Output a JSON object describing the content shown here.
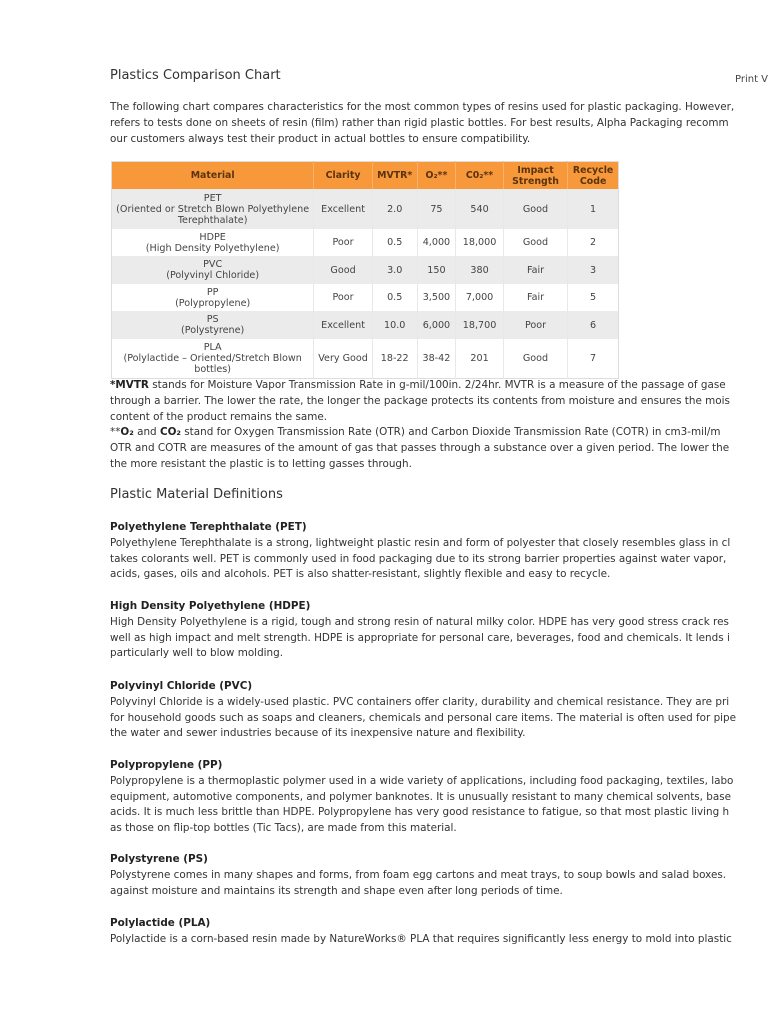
{
  "title": "Plastics Comparison Chart",
  "print_link": "Print V",
  "intro": [
    "The following chart compares characteristics for the most common types of resins used for plastic packaging. However,",
    "refers to tests done on sheets of resin (film) rather than rigid plastic bottles. For best results, Alpha Packaging recomm",
    "our customers always test their product in actual bottles to ensure compatibility."
  ],
  "table": {
    "header_color": "#f7983a",
    "headers": [
      "Material",
      "Clarity",
      "MVTR*",
      "O₂**",
      "C0₂**",
      "Impact Strength",
      "Recycle Code"
    ],
    "rows": [
      {
        "abbr": "PET",
        "name": "(Oriented or Stretch Blown Polyethylene Terephthalate)",
        "clarity": "Excellent",
        "mvtr": "2.0",
        "o2": "75",
        "co2": "540",
        "impact": "Good",
        "code": "1"
      },
      {
        "abbr": "HDPE",
        "name": "(High Density Polyethylene)",
        "clarity": "Poor",
        "mvtr": "0.5",
        "o2": "4,000",
        "co2": "18,000",
        "impact": "Good",
        "code": "2"
      },
      {
        "abbr": "PVC",
        "name": "(Polyvinyl Chloride)",
        "clarity": "Good",
        "mvtr": "3.0",
        "o2": "150",
        "co2": "380",
        "impact": "Fair",
        "code": "3"
      },
      {
        "abbr": "PP",
        "name": "(Polypropylene)",
        "clarity": "Poor",
        "mvtr": "0.5",
        "o2": "3,500",
        "co2": "7,000",
        "impact": "Fair",
        "code": "5"
      },
      {
        "abbr": "PS",
        "name": "(Polystyrene)",
        "clarity": "Excellent",
        "mvtr": "10.0",
        "o2": "6,000",
        "co2": "18,700",
        "impact": "Poor",
        "code": "6"
      },
      {
        "abbr": "PLA",
        "name": "(Polylactide – Oriented/Stretch Blown bottles)",
        "clarity": "Very Good",
        "mvtr": "18-22",
        "o2": "38-42",
        "co2": "201",
        "impact": "Good",
        "code": "7"
      }
    ]
  },
  "footnotes": {
    "mvtr_bold": "*MVTR",
    "mvtr_lines": [
      " stands for Moisture Vapor Transmission Rate in g-mil/100in. 2/24hr. MVTR is a measure of the passage of gase",
      "through a barrier. The lower the rate, the longer the package protects its contents from moisture and ensures the mois",
      "content of the product remains the same."
    ],
    "gas_prefix": "**",
    "o2_bold": "O₂",
    "and": " and ",
    "co2_bold": "CO₂",
    "gas_lines": [
      " stand for Oxygen Transmission Rate (OTR) and Carbon Dioxide Transmission Rate (COTR) in cm3-mil/m",
      "OTR and COTR are measures of the amount of gas that passes through a substance over a given period. The lower the",
      "the more resistant the plastic is to letting gasses through."
    ]
  },
  "definitions_title": "Plastic Material Definitions",
  "definitions": [
    {
      "heading": "Polyethylene Terephthalate (PET)",
      "lines": [
        "Polyethylene Terephthalate is a strong, lightweight plastic resin and form of polyester that closely resembles glass in cl",
        "takes colorants well. PET is commonly used in food packaging due to its strong barrier properties against water vapor,",
        "acids, gases, oils and alcohols. PET is also shatter-resistant, slightly flexible and easy to recycle."
      ]
    },
    {
      "heading": "High Density Polyethylene (HDPE)",
      "lines": [
        "High Density Polyethylene is a rigid, tough and strong resin of natural milky color. HDPE has very good stress crack res",
        "well as high impact and melt strength. HDPE is appropriate for personal care, beverages, food and chemicals. It lends i",
        "particularly well to blow molding."
      ]
    },
    {
      "heading": "Polyvinyl Chloride (PVC)",
      "lines": [
        "Polyvinyl Chloride is a widely-used plastic. PVC containers offer clarity, durability and chemical resistance. They are pri",
        "for household goods such as soaps and cleaners, chemicals and personal care items. The material is often used for pipe",
        "the water and sewer industries because of its inexpensive nature and flexibility."
      ]
    },
    {
      "heading": "Polypropylene (PP)",
      "lines": [
        "Polypropylene is a thermoplastic polymer used in a wide variety of applications, including food packaging, textiles, labo",
        "equipment, automotive components, and polymer banknotes. It is unusually resistant to many chemical solvents, base",
        "acids. It is much less brittle than HDPE. Polypropylene has very good resistance to fatigue, so that most plastic living h",
        "as those on flip-top bottles (Tic Tacs), are made from this material."
      ]
    },
    {
      "heading": "Polystyrene (PS)",
      "lines": [
        "Polystyrene comes in many shapes and forms, from foam egg cartons and meat trays, to soup bowls and salad boxes.",
        "against moisture and maintains its strength and shape even after long periods of time."
      ]
    },
    {
      "heading": "Polylactide (PLA)",
      "lines": [
        "Polylactide is a corn-based resin made by NatureWorks® PLA that requires significantly less energy to mold into plastic"
      ]
    }
  ]
}
